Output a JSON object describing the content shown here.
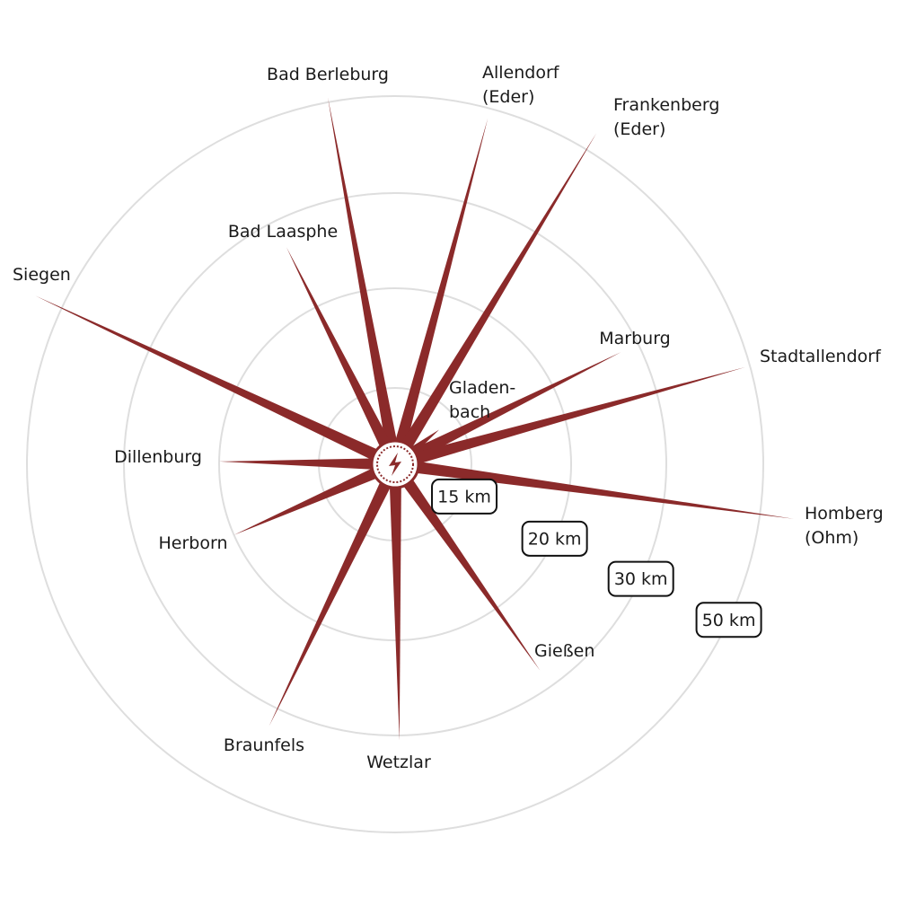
{
  "chart_data": {
    "type": "radial",
    "categories": [
      [
        "Bad Berleburg"
      ],
      [
        "Allendorf",
        "(Eder)"
      ],
      [
        "Frankenberg",
        "(Eder)"
      ],
      [
        "Bad Laasphe"
      ],
      [
        "Siegen"
      ],
      [
        "Marburg"
      ],
      [
        "Stadtallendorf"
      ],
      [
        "Gladen-",
        "bach"
      ],
      [
        "Homberg",
        "(Ohm)"
      ],
      [
        "Gießen"
      ],
      [
        "Wetzlar"
      ],
      [
        "Braunfels"
      ],
      [
        "Herborn"
      ],
      [
        "Dillenburg"
      ]
    ],
    "values": [
      51,
      48,
      54,
      27,
      56,
      28,
      49,
      11,
      57,
      28,
      31,
      34,
      20,
      20
    ],
    "rticks": [
      {
        "value": 15,
        "label": "15 km"
      },
      {
        "value": 20,
        "label": "20 km"
      },
      {
        "value": 30,
        "label": "30 km"
      },
      {
        "value": 50,
        "label": "50 km"
      }
    ],
    "color": "#8b2a2a",
    "grid": true
  }
}
